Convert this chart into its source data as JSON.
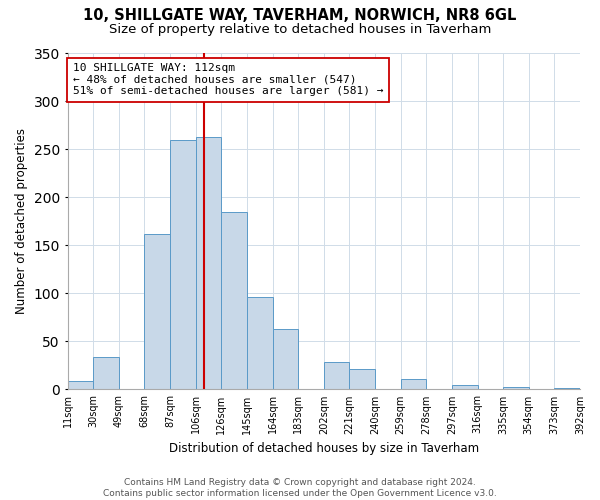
{
  "title": "10, SHILLGATE WAY, TAVERHAM, NORWICH, NR8 6GL",
  "subtitle": "Size of property relative to detached houses in Taverham",
  "xlabel": "Distribution of detached houses by size in Taverham",
  "ylabel": "Number of detached properties",
  "bin_edges": [
    11,
    30,
    49,
    68,
    87,
    106,
    125,
    144,
    163,
    182,
    201,
    220,
    239,
    258,
    277,
    296,
    315,
    334,
    353,
    372,
    391
  ],
  "bin_labels": [
    "11sqm",
    "30sqm",
    "49sqm",
    "68sqm",
    "87sqm",
    "106sqm",
    "126sqm",
    "145sqm",
    "164sqm",
    "183sqm",
    "202sqm",
    "221sqm",
    "240sqm",
    "259sqm",
    "278sqm",
    "297sqm",
    "316sqm",
    "335sqm",
    "354sqm",
    "373sqm",
    "392sqm"
  ],
  "counts": [
    9,
    34,
    0,
    162,
    260,
    263,
    185,
    96,
    63,
    0,
    29,
    21,
    0,
    11,
    0,
    5,
    0,
    3,
    0,
    1
  ],
  "bar_color": "#c8d8e8",
  "bar_edge_color": "#5a9ac8",
  "property_line_x": 112,
  "property_line_color": "#cc0000",
  "annotation_line1": "10 SHILLGATE WAY: 112sqm",
  "annotation_line2": "← 48% of detached houses are smaller (547)",
  "annotation_line3": "51% of semi-detached houses are larger (581) →",
  "annotation_box_color": "#ffffff",
  "annotation_box_edge": "#cc0000",
  "ylim": [
    0,
    350
  ],
  "yticks": [
    0,
    50,
    100,
    150,
    200,
    250,
    300,
    350
  ],
  "footer_text": "Contains HM Land Registry data © Crown copyright and database right 2024.\nContains public sector information licensed under the Open Government Licence v3.0.",
  "background_color": "#ffffff",
  "title_fontsize": 10.5,
  "subtitle_fontsize": 9.5,
  "xlabel_fontsize": 8.5,
  "ylabel_fontsize": 8.5,
  "tick_fontsize": 7,
  "annotation_fontsize": 8,
  "footer_fontsize": 6.5,
  "grid_color": "#d0dce8",
  "spine_color": "#aaaaaa"
}
